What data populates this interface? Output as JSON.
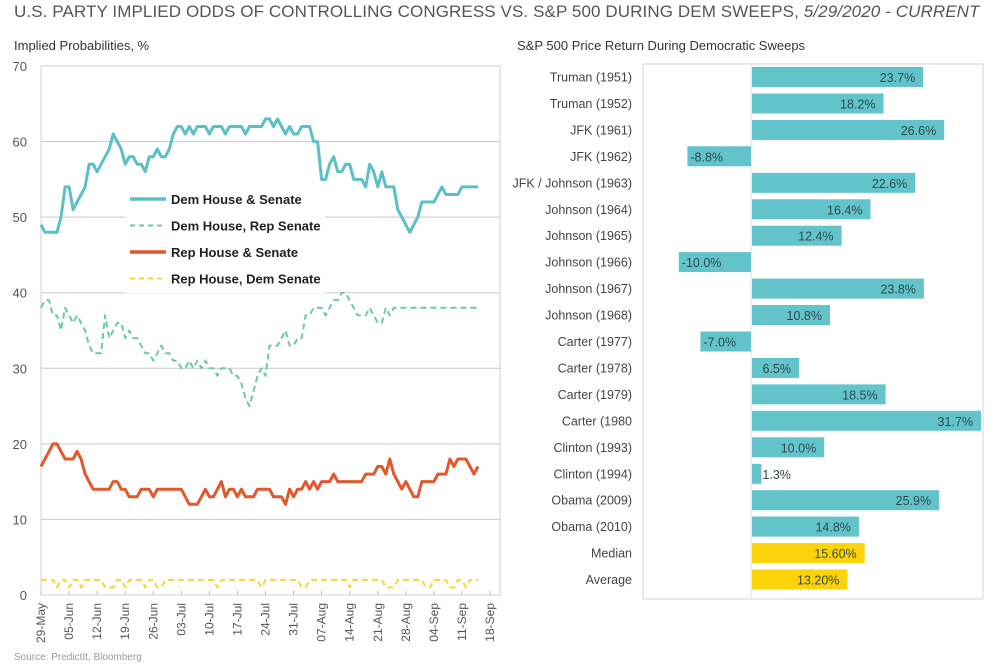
{
  "header": {
    "title_main": "U.S. PARTY IMPLIED ODDS OF CONTROLLING CONGRESS VS. S&P 500 DURING DEM SWEEPS,",
    "title_period": "5/29/2020 - CURRENT",
    "source": "Source: PredictIt, Bloomberg"
  },
  "colors": {
    "dem_house_senate": "#5bc0c6",
    "dem_house_rep_senate": "#6ccaa0",
    "rep_house_senate": "#e2572b",
    "rep_house_dem_senate": "#f5d633",
    "bar_positive": "#62c3cb",
    "bar_summary": "#fcd20a",
    "grid": "#c8c8c8"
  },
  "chart_data": [
    {
      "type": "line",
      "title": "Implied Probabilities, %",
      "xlabel": "",
      "ylabel": "Implied Probabilities, %",
      "ylim": [
        0,
        70
      ],
      "yticks": [
        0,
        10,
        20,
        30,
        40,
        50,
        60,
        70
      ],
      "grid": true,
      "legend_position": "center-left",
      "x_tick_labels": [
        "29-May",
        "05-Jun",
        "12-Jun",
        "19-Jun",
        "26-Jun",
        "03-Jul",
        "10-Jul",
        "17-Jul",
        "24-Jul",
        "31-Jul",
        "07-Aug",
        "14-Aug",
        "21-Aug",
        "28-Aug",
        "04-Sep",
        "11-Sep",
        "18-Sep"
      ],
      "x_day_range": [
        0,
        112
      ],
      "x_days": [
        0,
        1,
        2,
        3,
        4,
        5,
        6,
        7,
        8,
        9,
        10,
        11,
        12,
        13,
        14,
        15,
        16,
        17,
        18,
        19,
        20,
        21,
        22,
        23,
        24,
        25,
        26,
        27,
        28,
        29,
        30,
        31,
        32,
        33,
        34,
        35,
        36,
        37,
        38,
        39,
        40,
        41,
        42,
        43,
        44,
        45,
        46,
        47,
        48,
        49,
        50,
        51,
        52,
        53,
        54,
        55,
        56,
        57,
        58,
        59,
        60,
        61,
        62,
        63,
        64,
        65,
        66,
        67,
        68,
        69,
        70,
        71,
        72,
        73,
        74,
        75,
        76,
        77,
        78,
        79,
        80,
        81,
        82,
        83,
        84,
        85,
        86,
        87,
        88,
        89,
        90,
        91,
        92,
        93,
        94,
        95,
        96,
        97,
        98,
        99,
        100,
        101,
        102,
        103,
        104,
        105,
        106,
        107,
        108,
        109
      ],
      "series": [
        {
          "name": "Dem House & Senate",
          "style": "solid",
          "values": [
            49,
            48,
            48,
            48,
            48,
            50,
            54,
            54,
            51,
            52,
            53,
            54,
            57,
            57,
            56,
            57,
            58,
            59,
            61,
            60,
            59,
            57,
            58,
            58,
            57,
            57,
            56,
            58,
            58,
            59,
            58,
            58,
            59,
            61,
            62,
            62,
            61,
            62,
            61,
            62,
            62,
            62,
            61,
            62,
            62,
            62,
            61,
            62,
            62,
            62,
            62,
            61,
            62,
            62,
            62,
            62,
            63,
            63,
            62,
            63,
            62,
            61,
            62,
            61,
            61,
            62,
            62,
            62,
            60,
            60,
            55,
            55,
            57,
            58,
            56,
            56,
            57,
            57,
            55,
            55,
            55,
            54,
            57,
            56,
            54,
            56,
            54,
            54,
            54,
            51,
            50,
            49,
            48,
            49,
            50,
            52,
            52,
            52,
            52,
            53,
            54,
            53,
            53,
            53,
            53,
            54,
            54,
            54,
            54,
            54
          ]
        },
        {
          "name": "Dem House, Rep Senate",
          "style": "dashed",
          "values": [
            38,
            39,
            39,
            37,
            37,
            35,
            38,
            37,
            36,
            37,
            36,
            35,
            33,
            32,
            32,
            32,
            37,
            34,
            35,
            36,
            36,
            34,
            35,
            34,
            34,
            33,
            32,
            32,
            31,
            32,
            33,
            32,
            32,
            31,
            31,
            30,
            30,
            31,
            30,
            31,
            30,
            31,
            30,
            30,
            29,
            30,
            30,
            30,
            29,
            29,
            28,
            26,
            25,
            27,
            29,
            30,
            29,
            33,
            33,
            33,
            34,
            35,
            33,
            33,
            34,
            34,
            37,
            37,
            38,
            38,
            38,
            37,
            38,
            39,
            39,
            40,
            40,
            39,
            38,
            37,
            37,
            37,
            38,
            37,
            36,
            36,
            38,
            37,
            38,
            38,
            38,
            38,
            38,
            38,
            38,
            38,
            38,
            38,
            38,
            38,
            38,
            38,
            38,
            38,
            38,
            38,
            38,
            38,
            38,
            38
          ]
        },
        {
          "name": "Rep House & Senate",
          "style": "solid",
          "values": [
            17,
            18,
            19,
            20,
            20,
            19,
            18,
            18,
            18,
            19,
            18,
            16,
            15,
            14,
            14,
            14,
            14,
            14,
            15,
            15,
            14,
            14,
            13,
            13,
            13,
            14,
            14,
            14,
            13,
            14,
            14,
            14,
            14,
            14,
            14,
            14,
            13,
            12,
            12,
            12,
            13,
            14,
            13,
            13,
            14,
            15,
            13,
            14,
            14,
            13,
            14,
            13,
            13,
            13,
            14,
            14,
            14,
            14,
            13,
            13,
            13,
            12,
            14,
            13,
            14,
            14,
            15,
            14,
            15,
            14,
            15,
            15,
            15,
            16,
            15,
            15,
            15,
            15,
            15,
            15,
            15,
            16,
            16,
            16,
            17,
            17,
            16,
            18,
            16,
            15,
            14,
            15,
            14,
            13,
            13,
            15,
            15,
            15,
            15,
            16,
            16,
            16,
            18,
            17,
            18,
            18,
            18,
            17,
            16,
            17
          ]
        },
        {
          "name": "Rep House, Dem Senate",
          "style": "dashed",
          "values": [
            2,
            2,
            2,
            2,
            1,
            2,
            2,
            1,
            2,
            2,
            1,
            2,
            2,
            2,
            2,
            2,
            1,
            1,
            1,
            2,
            2,
            1,
            2,
            2,
            2,
            2,
            1,
            2,
            2,
            1,
            1,
            2,
            2,
            2,
            2,
            2,
            2,
            2,
            2,
            2,
            2,
            2,
            2,
            2,
            1,
            2,
            2,
            2,
            2,
            2,
            2,
            2,
            2,
            2,
            2,
            1,
            2,
            2,
            2,
            2,
            2,
            2,
            2,
            2,
            2,
            1,
            1,
            2,
            2,
            2,
            2,
            2,
            2,
            2,
            2,
            2,
            2,
            1,
            2,
            2,
            2,
            2,
            2,
            2,
            2,
            2,
            1,
            1,
            1,
            2,
            2,
            2,
            2,
            2,
            2,
            2,
            1,
            1,
            2,
            2,
            2,
            2,
            1,
            1,
            2,
            2,
            1,
            2,
            2,
            2
          ]
        }
      ]
    },
    {
      "type": "bar",
      "orientation": "horizontal",
      "title": "S&P 500 Price Return During Democratic Sweeps",
      "xlabel": "",
      "ylabel": "",
      "xlim": [
        -15,
        33
      ],
      "categories": [
        "Truman (1951)",
        "Truman (1952)",
        "JFK (1961)",
        "JFK (1962)",
        "JFK / Johnson (1963)",
        "Johnson (1964)",
        "Johnson (1965)",
        "Johnson (1966)",
        "Johnson (1967)",
        "Johnson (1968)",
        "Carter (1977)",
        "Carter (1978)",
        "Carter (1979)",
        "Carter (1980",
        "Clinton (1993)",
        "Clinton (1994)",
        "Obama (2009)",
        "Obama (2010)",
        "Median",
        "Average"
      ],
      "values": [
        23.7,
        18.2,
        26.6,
        -8.8,
        22.6,
        16.4,
        12.4,
        -10.0,
        23.8,
        10.8,
        -7.0,
        6.5,
        18.5,
        31.7,
        10.0,
        1.3,
        25.9,
        14.8,
        15.6,
        13.2
      ],
      "data_labels": [
        "23.7%",
        "18.2%",
        "26.6%",
        "-8.8%",
        "22.6%",
        "16.4%",
        "12.4%",
        "-10.0%",
        "23.8%",
        "10.8%",
        "-7.0%",
        "6.5%",
        "18.5%",
        "31.7%",
        "10.0%",
        "1.3%",
        "25.9%",
        "14.8%",
        "15.60%",
        "13.20%"
      ],
      "summary_rows": [
        "Median",
        "Average"
      ],
      "grid": false
    }
  ]
}
